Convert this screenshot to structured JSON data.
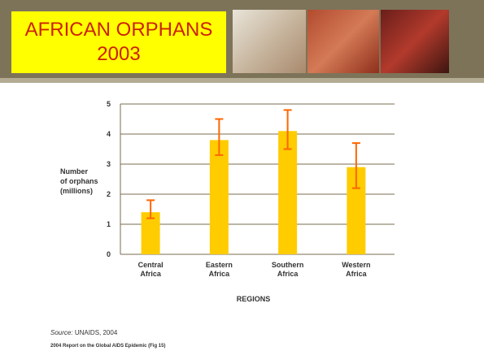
{
  "title": {
    "line1": "AFRICAN ORPHANS",
    "line2": "2003"
  },
  "colors": {
    "bar": "#ffcc00",
    "error": "#ff6600",
    "title_bg": "#ffff00",
    "title_text": "#cc2200",
    "banner": "#7d7359"
  },
  "footer": {
    "source_label": "Source:",
    "source_text": "UNAIDS, 2004",
    "report": "2004 Report on the Global AIDS Epidemic (Fig 15)"
  },
  "chart_data": {
    "type": "bar",
    "categories": [
      [
        "Central",
        "Africa"
      ],
      [
        "Eastern",
        "Africa"
      ],
      [
        "Southern",
        "Africa"
      ],
      [
        "Western",
        "Africa"
      ]
    ],
    "values": [
      1.4,
      3.8,
      4.1,
      2.9
    ],
    "error_low": [
      1.2,
      3.3,
      3.5,
      2.2
    ],
    "error_high": [
      1.8,
      4.5,
      4.8,
      3.7
    ],
    "xlabel": "REGIONS",
    "ylabel": [
      "Number",
      "of orphans",
      "(millions)"
    ],
    "ylim": [
      0,
      5
    ],
    "yticks": [
      0,
      1,
      2,
      3,
      4,
      5
    ],
    "grid": true
  }
}
